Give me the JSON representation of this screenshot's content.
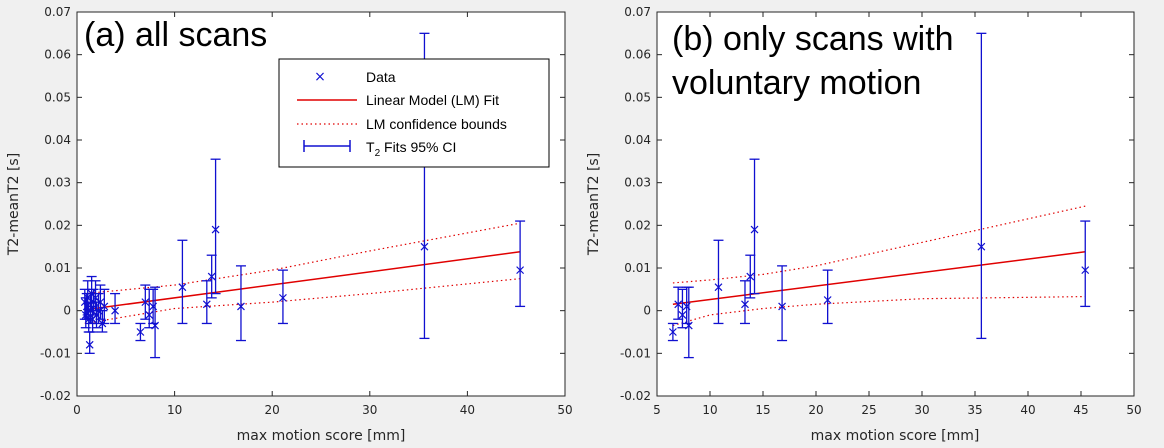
{
  "colors": {
    "data": "#1010d0",
    "fit": "#e00000",
    "bounds": "#e00000",
    "axis": "#262626",
    "panel_bg": "#ffffff",
    "figure_bg": "#f0f0f0"
  },
  "legend": {
    "data_label": "Data",
    "fit_label": "Linear Model (LM) Fit",
    "bounds_label": "LM confidence bounds",
    "errorbar_label_main": "T",
    "errorbar_label_sub": "2",
    "errorbar_label_rest": " Fits 95% CI"
  },
  "chart_data": [
    {
      "type": "scatter",
      "panel_title": "(a) all scans",
      "xlabel": "max motion score [mm]",
      "ylabel": "T2-meanT2 [s]",
      "xlim": [
        0,
        50
      ],
      "ylim": [
        -0.02,
        0.07
      ],
      "xticks": [
        0,
        10,
        20,
        30,
        40,
        50
      ],
      "xtick_labels": [
        "0",
        "10",
        "20",
        "30",
        "40",
        "50"
      ],
      "yticks": [
        -0.02,
        -0.01,
        0,
        0.01,
        0.02,
        0.03,
        0.04,
        0.05,
        0.06,
        0.07
      ],
      "ytick_labels": [
        "-0.02",
        "-0.01",
        "0",
        "0.01",
        "0.02",
        "0.03",
        "0.04",
        "0.05",
        "0.06",
        "0.07"
      ],
      "points": [
        {
          "x": 0.8,
          "y": 0.002,
          "lo": -0.002,
          "hi": 0.005
        },
        {
          "x": 0.9,
          "y": -0.001,
          "lo": -0.004,
          "hi": 0.003
        },
        {
          "x": 1.0,
          "y": 0.001,
          "lo": -0.002,
          "hi": 0.004
        },
        {
          "x": 1.1,
          "y": 0.003,
          "lo": -0.001,
          "hi": 0.007
        },
        {
          "x": 1.2,
          "y": -0.002,
          "lo": -0.005,
          "hi": 0.002
        },
        {
          "x": 1.3,
          "y": -0.008,
          "lo": -0.01,
          "hi": -0.005
        },
        {
          "x": 1.4,
          "y": 0.0,
          "lo": -0.003,
          "hi": 0.004
        },
        {
          "x": 1.5,
          "y": 0.004,
          "lo": 0.0,
          "hi": 0.008
        },
        {
          "x": 1.6,
          "y": -0.002,
          "lo": -0.005,
          "hi": 0.001
        },
        {
          "x": 1.7,
          "y": 0.002,
          "lo": -0.001,
          "hi": 0.005
        },
        {
          "x": 1.9,
          "y": 0.003,
          "lo": 0.0,
          "hi": 0.007
        },
        {
          "x": 2.0,
          "y": -0.001,
          "lo": -0.004,
          "hi": 0.002
        },
        {
          "x": 2.2,
          "y": 0.0,
          "lo": -0.003,
          "hi": 0.004
        },
        {
          "x": 2.4,
          "y": 0.002,
          "lo": -0.002,
          "hi": 0.006
        },
        {
          "x": 2.6,
          "y": -0.003,
          "lo": -0.005,
          "hi": 0.0
        },
        {
          "x": 2.8,
          "y": 0.001,
          "lo": -0.003,
          "hi": 0.005
        },
        {
          "x": 3.9,
          "y": 0.0,
          "lo": -0.003,
          "hi": 0.004
        },
        {
          "x": 6.5,
          "y": -0.005,
          "lo": -0.007,
          "hi": -0.003
        },
        {
          "x": 7.0,
          "y": 0.002,
          "lo": -0.002,
          "hi": 0.006
        },
        {
          "x": 7.4,
          "y": -0.001,
          "lo": -0.004,
          "hi": 0.005
        },
        {
          "x": 7.8,
          "y": 0.001,
          "lo": -0.003,
          "hi": 0.005
        },
        {
          "x": 8.0,
          "y": -0.0035,
          "lo": -0.011,
          "hi": 0.0055
        },
        {
          "x": 10.8,
          "y": 0.0055,
          "lo": -0.003,
          "hi": 0.0165
        },
        {
          "x": 13.3,
          "y": 0.0015,
          "lo": -0.003,
          "hi": 0.007
        },
        {
          "x": 13.8,
          "y": 0.008,
          "lo": 0.003,
          "hi": 0.013
        },
        {
          "x": 14.2,
          "y": 0.019,
          "lo": 0.004,
          "hi": 0.0355
        },
        {
          "x": 16.8,
          "y": 0.001,
          "lo": -0.007,
          "hi": 0.0105
        },
        {
          "x": 21.1,
          "y": 0.003,
          "lo": -0.003,
          "hi": 0.0095
        },
        {
          "x": 35.6,
          "y": 0.015,
          "lo": -0.0065,
          "hi": 0.065
        },
        {
          "x": 45.4,
          "y": 0.0095,
          "lo": 0.001,
          "hi": 0.021
        }
      ],
      "fit": {
        "x": [
          0.8,
          45.4
        ],
        "y": [
          0.0002,
          0.0138
        ]
      },
      "bounds_lower": {
        "x": [
          0.8,
          10,
          20,
          30,
          45.4
        ],
        "y": [
          -0.003,
          0.0005,
          0.002,
          0.004,
          0.0075
        ]
      },
      "bounds_upper": {
        "x": [
          0.8,
          10,
          20,
          30,
          45.4
        ],
        "y": [
          0.004,
          0.006,
          0.0095,
          0.014,
          0.0205
        ]
      },
      "legend_position": "top-right"
    },
    {
      "type": "scatter",
      "panel_title_line1": "(b) only scans with",
      "panel_title_line2": "voluntary motion",
      "xlabel": "max motion score [mm]",
      "ylabel": "T2-meanT2 [s]",
      "xlim": [
        5,
        50
      ],
      "ylim": [
        -0.02,
        0.07
      ],
      "xticks": [
        5,
        10,
        15,
        20,
        25,
        30,
        35,
        40,
        45,
        50
      ],
      "xtick_labels": [
        "5",
        "10",
        "15",
        "20",
        "25",
        "30",
        "35",
        "40",
        "45",
        "50"
      ],
      "yticks": [
        -0.02,
        -0.01,
        0,
        0.01,
        0.02,
        0.03,
        0.04,
        0.05,
        0.06,
        0.07
      ],
      "ytick_labels": [
        "-0.02",
        "-0.01",
        "0",
        "0.01",
        "0.02",
        "0.03",
        "0.04",
        "0.05",
        "0.06",
        "0.07"
      ],
      "points": [
        {
          "x": 6.5,
          "y": -0.005,
          "lo": -0.007,
          "hi": -0.003
        },
        {
          "x": 7.0,
          "y": 0.0015,
          "lo": -0.002,
          "hi": 0.0055
        },
        {
          "x": 7.4,
          "y": -0.001,
          "lo": -0.004,
          "hi": 0.005
        },
        {
          "x": 7.8,
          "y": 0.001,
          "lo": -0.003,
          "hi": 0.0055
        },
        {
          "x": 8.0,
          "y": -0.0035,
          "lo": -0.011,
          "hi": 0.0055
        },
        {
          "x": 10.8,
          "y": 0.0055,
          "lo": -0.003,
          "hi": 0.0165
        },
        {
          "x": 13.3,
          "y": 0.0015,
          "lo": -0.003,
          "hi": 0.007
        },
        {
          "x": 13.8,
          "y": 0.008,
          "lo": 0.003,
          "hi": 0.013
        },
        {
          "x": 14.2,
          "y": 0.019,
          "lo": 0.004,
          "hi": 0.0355
        },
        {
          "x": 16.8,
          "y": 0.001,
          "lo": -0.007,
          "hi": 0.0105
        },
        {
          "x": 21.1,
          "y": 0.0025,
          "lo": -0.003,
          "hi": 0.0095
        },
        {
          "x": 35.6,
          "y": 0.015,
          "lo": -0.0065,
          "hi": 0.065
        },
        {
          "x": 45.4,
          "y": 0.0095,
          "lo": 0.001,
          "hi": 0.021
        }
      ],
      "fit": {
        "x": [
          6.5,
          45.4
        ],
        "y": [
          0.0015,
          0.0138
        ]
      },
      "bounds_lower": {
        "x": [
          6.5,
          10,
          15,
          20,
          30,
          45.4
        ],
        "y": [
          -0.0035,
          -0.001,
          0.0005,
          0.0015,
          0.0028,
          0.0033
        ]
      },
      "bounds_upper": {
        "x": [
          6.5,
          10,
          15,
          20,
          30,
          45.4
        ],
        "y": [
          0.0065,
          0.0072,
          0.0085,
          0.0105,
          0.016,
          0.0245
        ]
      }
    }
  ]
}
